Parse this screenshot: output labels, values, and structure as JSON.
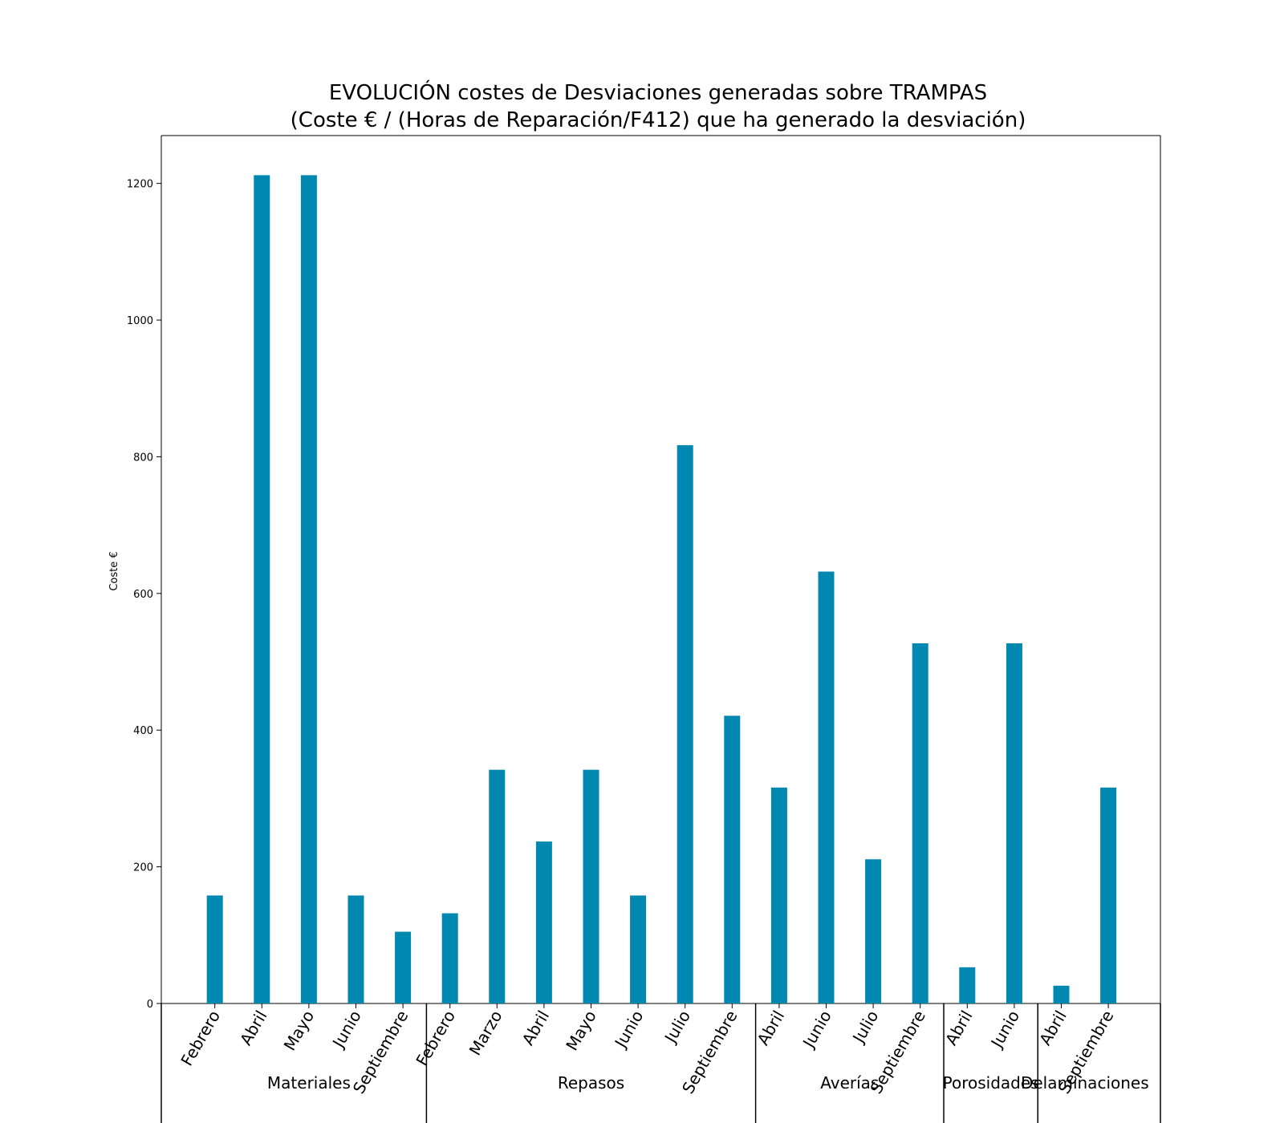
{
  "chart_data": {
    "type": "bar",
    "title": "EVOLUCIÓN costes de Desviaciones  generadas  sobre TRAMPAS",
    "subtitle": "(Coste € / (Horas de Reparación/F412) que ha generado la desviación)",
    "ylabel": "Coste €",
    "xlabel": "",
    "ylim": [
      0,
      1270
    ],
    "yticks": [
      0,
      200,
      400,
      600,
      800,
      1000,
      1200
    ],
    "color": "#0088b0",
    "grid": false,
    "categories": [
      "Febrero",
      "Abril",
      "Mayo",
      "Junio",
      "Septiembre",
      "Febrero",
      "Marzo",
      "Abril",
      "Mayo",
      "Junio",
      "Julio",
      "Septiembre",
      "Abril",
      "Junio",
      "Julio",
      "Septiembre",
      "Abril",
      "Junio",
      "Abril",
      "Septiembre"
    ],
    "values": [
      158,
      1212,
      1212,
      158,
      105,
      132,
      342,
      237,
      342,
      158,
      817,
      421,
      316,
      632,
      211,
      527,
      53,
      527,
      26,
      316
    ],
    "groups": [
      {
        "name": "Materiales",
        "count": 5
      },
      {
        "name": "Repasos",
        "count": 7
      },
      {
        "name": "Averías",
        "count": 4
      },
      {
        "name": "Porosidades",
        "count": 2
      },
      {
        "name": "Delaminaciones",
        "count": 2
      }
    ]
  }
}
